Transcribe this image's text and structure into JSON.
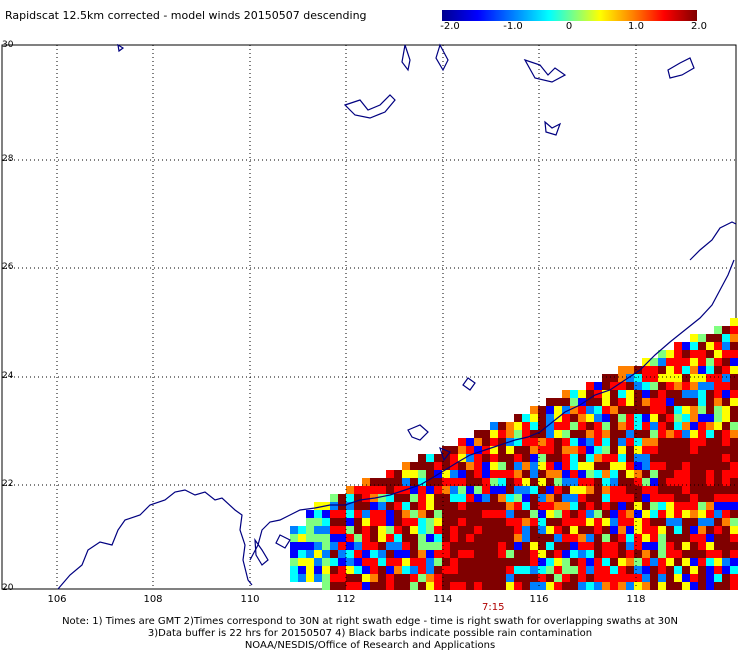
{
  "title": "Rapidscat 12.5km corrected - model winds 20150507 descending",
  "colorbar": {
    "ticks": [
      "-2.0",
      "-1.0",
      "0",
      "1.0",
      "2.0"
    ],
    "colors": [
      "#00008f",
      "#0000ff",
      "#0080ff",
      "#00ffff",
      "#80ff80",
      "#ffff00",
      "#ff8000",
      "#ff0000",
      "#800000"
    ]
  },
  "map": {
    "lon_range": [
      105,
      120
    ],
    "lat_range": [
      20,
      30
    ],
    "lon_labels": [
      "106",
      "108",
      "110",
      "112",
      "114",
      "116",
      "118"
    ],
    "lat_labels": [
      "30",
      "28",
      "26",
      "24",
      "22",
      "20"
    ],
    "grid": "dotted",
    "coastline_color": "#000080"
  },
  "time_label": "7:15",
  "notes": [
    "Note: 1) Times are GMT 2)Times correspond to 30N at right swath edge - time is right swath for overlapping swaths at 30N",
    "3)Data buffer is 22 hrs for 20150507 4) Black barbs indicate possible rain contamination",
    "NOAA/NESDIS/Office of Research and Applications"
  ]
}
